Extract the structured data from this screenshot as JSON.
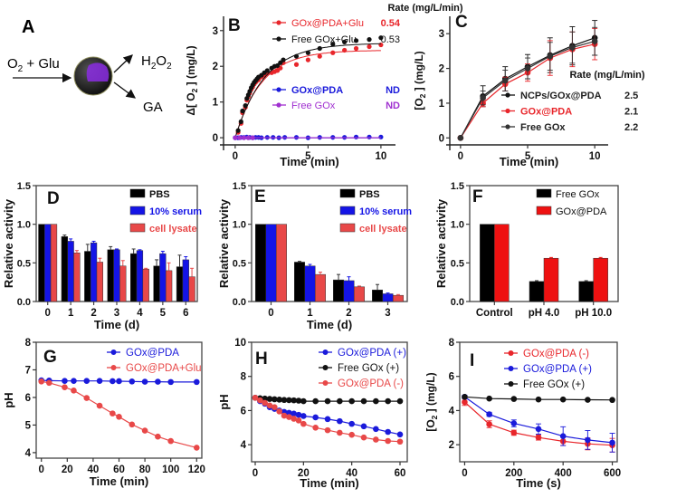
{
  "figure": {
    "panel_a": {
      "letter": "A",
      "input_label": "O2 + Glu",
      "output_top": "H2O2",
      "output_bottom": "GA",
      "particle_color": "#2a2a2a",
      "core_color": "#8a2be2"
    }
  },
  "chart_data": [
    {
      "id": "B",
      "type": "scatter",
      "letter": "B",
      "title": "",
      "xlabel": "Time (min)",
      "ylabel": "Δ[ O2 ] (mg/L)",
      "xlim": [
        -0.8,
        11
      ],
      "ylim": [
        -0.2,
        3.4
      ],
      "xticks": [
        0,
        5,
        10
      ],
      "yticks": [
        0,
        1,
        2,
        3
      ],
      "legend_header": "Rate (mg/L/min)",
      "legend_position": "top-right",
      "series": [
        {
          "name": "GOx@PDA+Glu",
          "rate": "0.54",
          "color": "#e8262b",
          "fit": {
            "a": 2.45,
            "k": 0.55
          },
          "x": [
            0.2,
            0.4,
            0.5,
            0.7,
            0.8,
            0.9,
            1.0,
            1.1,
            1.2,
            1.3,
            1.4,
            1.5,
            1.6,
            1.8,
            2.0,
            2.2,
            2.5,
            2.7,
            2.9,
            3.1,
            3.3,
            4.2,
            5.0,
            5.8,
            6.7,
            7.5,
            8.3,
            9.2,
            10.0
          ],
          "y": [
            0.15,
            0.4,
            0.7,
            0.85,
            1.05,
            1.15,
            1.25,
            1.35,
            1.42,
            1.5,
            1.55,
            1.6,
            1.62,
            1.7,
            1.75,
            1.8,
            1.82,
            1.85,
            1.88,
            1.95,
            2.1,
            2.05,
            2.18,
            2.28,
            2.38,
            2.45,
            2.5,
            2.55,
            2.6
          ]
        },
        {
          "name": "Free GOx+Glu",
          "rate": "0.53",
          "color": "#111111",
          "fit": {
            "a": 2.65,
            "k": 0.5
          },
          "x": [
            0.2,
            0.4,
            0.5,
            0.7,
            0.8,
            0.9,
            1.0,
            1.1,
            1.2,
            1.3,
            1.4,
            1.5,
            1.6,
            1.8,
            2.0,
            2.2,
            2.5,
            2.7,
            2.9,
            3.1,
            3.3,
            4.2,
            5.0,
            5.8,
            6.7,
            7.5,
            8.3,
            9.2,
            10.0
          ],
          "y": [
            0.2,
            0.45,
            0.75,
            0.9,
            1.1,
            1.2,
            1.3,
            1.4,
            1.48,
            1.55,
            1.6,
            1.65,
            1.7,
            1.75,
            1.82,
            1.88,
            1.95,
            2.0,
            2.02,
            2.1,
            2.18,
            2.28,
            2.38,
            2.5,
            2.62,
            2.68,
            2.72,
            2.75,
            2.8
          ]
        },
        {
          "name": "GOx@PDA",
          "rate": "ND",
          "color": "#1a1adb",
          "x": [
            0,
            0.2,
            0.4,
            0.6,
            0.8,
            1.0,
            1.2,
            1.4,
            1.6,
            1.8,
            2.2,
            2.6,
            3.0,
            3.4,
            4.2,
            5.0,
            5.8,
            6.7,
            7.5,
            8.3,
            9.2,
            10.0
          ],
          "y": [
            0,
            0,
            0.01,
            0.01,
            0.02,
            0.01,
            0,
            0.01,
            0.01,
            0,
            0.01,
            0.01,
            0,
            0.01,
            0.01,
            0,
            0.01,
            0.01,
            0.01,
            0.02,
            0.02,
            0.02
          ]
        },
        {
          "name": "Free GOx",
          "rate": "ND",
          "color": "#a030d0",
          "x": [
            0,
            0.3,
            0.6,
            0.9,
            1.2
          ],
          "y": [
            0,
            0,
            0,
            0,
            0
          ]
        }
      ]
    },
    {
      "id": "C",
      "type": "line",
      "letter": "C",
      "xlabel": "Time (min)",
      "ylabel": "[O2 ] (mg/L)",
      "xlim": [
        -0.8,
        11
      ],
      "ylim": [
        -0.2,
        3.5
      ],
      "xticks": [
        0,
        5,
        10
      ],
      "yticks": [
        0,
        1,
        2,
        3
      ],
      "legend_header": "Rate (mg/L/min)",
      "legend_position": "bottom-right",
      "x": [
        0,
        1.67,
        3.33,
        5.0,
        6.67,
        8.33,
        10.0
      ],
      "series": [
        {
          "name": "NCPs/GOx@PDA",
          "rate": "2.5",
          "color": "#111111",
          "y": [
            0,
            1.2,
            1.7,
            2.05,
            2.38,
            2.65,
            2.88
          ],
          "err": [
            0,
            0.3,
            0.35,
            0.35,
            0.5,
            0.55,
            0.5
          ]
        },
        {
          "name": "GOx@PDA",
          "rate": "2.1",
          "color": "#e8262b",
          "y": [
            0,
            1.0,
            1.55,
            1.88,
            2.3,
            2.55,
            2.7
          ],
          "err": [
            0,
            0.1,
            0.2,
            0.25,
            0.5,
            0.5,
            0.45
          ]
        },
        {
          "name": "Free GOx",
          "rate": "2.2",
          "color": "#333333",
          "y": [
            0,
            1.15,
            1.65,
            2.0,
            2.35,
            2.6,
            2.78
          ],
          "err": [
            0,
            0.2,
            0.3,
            0.3,
            0.4,
            0.45,
            0.4
          ]
        }
      ]
    },
    {
      "id": "D",
      "type": "bar",
      "letter": "D",
      "xlabel": "Time (d)",
      "ylabel": "Relative activity",
      "ylim": [
        0,
        1.5
      ],
      "yticks": [
        "0.0",
        "0.5",
        "1.0",
        "1.5"
      ],
      "categories": [
        "0",
        "1",
        "2",
        "3",
        "4",
        "5",
        "6"
      ],
      "legend_position": "top-right",
      "series": [
        {
          "name": "PBS",
          "color": "#000000",
          "label_color": "#111111",
          "values": [
            1.0,
            0.84,
            0.65,
            0.67,
            0.62,
            0.46,
            0.45
          ],
          "err": [
            0,
            0.02,
            0.09,
            0.04,
            0.06,
            0.08,
            0.15
          ]
        },
        {
          "name": "10% serum",
          "color": "#1414e6",
          "label_color": "#1414e6",
          "values": [
            1.0,
            0.78,
            0.76,
            0.67,
            0.66,
            0.62,
            0.54
          ],
          "err": [
            0,
            0.03,
            0.02,
            0.01,
            0.01,
            0.03,
            0.04
          ]
        },
        {
          "name": "cell lysate",
          "color": "#e84848",
          "label_color": "#e84848",
          "values": [
            1.0,
            0.63,
            0.51,
            0.46,
            0.42,
            0.4,
            0.32
          ],
          "err": [
            0,
            0.03,
            0.05,
            0.07,
            0.01,
            0.1,
            0.11
          ]
        }
      ]
    },
    {
      "id": "E",
      "type": "bar",
      "letter": "E",
      "xlabel": "Time (d)",
      "ylabel": "Relative activity",
      "ylim": [
        0,
        1.5
      ],
      "yticks": [
        "0.0",
        "0.5",
        "1.0",
        "1.5"
      ],
      "categories": [
        "0",
        "1",
        "2",
        "3"
      ],
      "legend_position": "top-right",
      "series": [
        {
          "name": "PBS",
          "color": "#000000",
          "label_color": "#111111",
          "values": [
            1.0,
            0.51,
            0.28,
            0.15
          ],
          "err": [
            0,
            0.01,
            0.07,
            0.07
          ]
        },
        {
          "name": "10% serum",
          "color": "#1414e6",
          "label_color": "#1414e6",
          "values": [
            1.0,
            0.46,
            0.27,
            0.1
          ],
          "err": [
            0,
            0.02,
            0.05,
            0.01
          ]
        },
        {
          "name": "cell lysate",
          "color": "#e84848",
          "label_color": "#e84848",
          "values": [
            1.0,
            0.35,
            0.19,
            0.08
          ],
          "err": [
            0,
            0.03,
            0.01,
            0.01
          ]
        }
      ]
    },
    {
      "id": "F",
      "type": "bar",
      "letter": "F",
      "xlabel": "",
      "ylabel": "Relative activity",
      "ylim": [
        0,
        1.5
      ],
      "yticks": [
        "0.0",
        "0.5",
        "1.0",
        "1.5"
      ],
      "categories": [
        "Control",
        "pH 4.0",
        "pH 10.0"
      ],
      "legend_position": "top-right",
      "series": [
        {
          "name": "Free GOx",
          "color": "#000000",
          "label_color": "#111111",
          "values": [
            1.0,
            0.26,
            0.26
          ],
          "err": [
            0,
            0.01,
            0.01
          ]
        },
        {
          "name": "GOx@PDA",
          "color": "#ee1111",
          "label_color": "#111111",
          "values": [
            1.0,
            0.56,
            0.56
          ],
          "err": [
            0,
            0.01,
            0.01
          ]
        }
      ]
    },
    {
      "id": "G",
      "type": "line",
      "letter": "G",
      "xlabel": "Time (min)",
      "ylabel": "pH",
      "xlim": [
        -4,
        124
      ],
      "ylim": [
        3.8,
        8
      ],
      "xticks": [
        0,
        20,
        40,
        60,
        80,
        100,
        120
      ],
      "yticks": [
        4,
        5,
        6,
        7,
        8
      ],
      "legend_position": "top-right",
      "series": [
        {
          "name": "GOx@PDA",
          "color": "#1a1adb",
          "x": [
            0,
            6,
            18,
            25,
            35,
            45,
            55,
            60,
            70,
            80,
            90,
            100,
            120
          ],
          "y": [
            6.62,
            6.61,
            6.6,
            6.6,
            6.6,
            6.6,
            6.59,
            6.59,
            6.58,
            6.57,
            6.57,
            6.56,
            6.56
          ]
        },
        {
          "name": "GOx@PDA+Glu",
          "color": "#e84848",
          "x": [
            0,
            6,
            18,
            25,
            35,
            45,
            55,
            60,
            70,
            80,
            90,
            100,
            120
          ],
          "y": [
            6.58,
            6.53,
            6.37,
            6.25,
            5.98,
            5.7,
            5.42,
            5.3,
            5.02,
            4.8,
            4.58,
            4.42,
            4.18
          ]
        }
      ]
    },
    {
      "id": "H",
      "type": "line",
      "letter": "H",
      "xlabel": "Time (min)",
      "ylabel": "pH",
      "xlim": [
        -1.5,
        63
      ],
      "ylim": [
        3,
        10
      ],
      "xticks": [
        0,
        20,
        40,
        60
      ],
      "yticks": [
        4,
        6,
        8,
        10
      ],
      "legend_position": "top-right",
      "series": [
        {
          "name": "GOx@PDA (+)",
          "color": "#1a1adb",
          "x": [
            0,
            2,
            4,
            6,
            8,
            10,
            12,
            14,
            16,
            18,
            20,
            25,
            30,
            35,
            40,
            45,
            50,
            55,
            60
          ],
          "y": [
            6.75,
            6.55,
            6.4,
            6.2,
            6.1,
            6.0,
            5.92,
            5.87,
            5.82,
            5.75,
            5.68,
            5.6,
            5.5,
            5.38,
            5.22,
            5.08,
            4.92,
            4.75,
            4.6
          ]
        },
        {
          "name": "Free GOx (+)",
          "color": "#111111",
          "x": [
            0,
            2,
            4,
            6,
            8,
            10,
            12,
            14,
            16,
            18,
            20,
            25,
            30,
            35,
            40,
            45,
            50,
            55,
            60
          ],
          "y": [
            6.75,
            6.72,
            6.7,
            6.68,
            6.66,
            6.64,
            6.62,
            6.61,
            6.6,
            6.58,
            6.55,
            6.55,
            6.55,
            6.55,
            6.55,
            6.55,
            6.55,
            6.55,
            6.55
          ]
        },
        {
          "name": "GOx@PDA (-)",
          "color": "#e84848",
          "x": [
            0,
            2,
            4,
            6,
            8,
            10,
            12,
            14,
            16,
            18,
            20,
            25,
            30,
            35,
            40,
            45,
            50,
            55,
            60
          ],
          "y": [
            6.75,
            6.6,
            6.45,
            6.3,
            6.2,
            5.95,
            5.7,
            5.62,
            5.52,
            5.42,
            5.22,
            5.0,
            4.85,
            4.7,
            4.58,
            4.42,
            4.3,
            4.22,
            4.18
          ]
        }
      ]
    },
    {
      "id": "I",
      "type": "line",
      "letter": "I",
      "xlabel": "Time (s)",
      "ylabel": "[O2 ] (mg/L)",
      "xlim": [
        -20,
        620
      ],
      "ylim": [
        1,
        8
      ],
      "xticks": [
        0,
        200,
        400,
        600
      ],
      "yticks": [
        2,
        4,
        6,
        8
      ],
      "legend_position": "top-right",
      "x": [
        0,
        100,
        200,
        300,
        400,
        500,
        600
      ],
      "series": [
        {
          "name": "GOx@PDA (-)",
          "color": "#e8262b",
          "y": [
            4.5,
            3.2,
            2.7,
            2.42,
            2.2,
            2.05,
            1.97
          ],
          "err": [
            0.2,
            0.2,
            0.15,
            0.15,
            0.25,
            0.35,
            0.4
          ]
        },
        {
          "name": "GOx@PDA (+)",
          "color": "#1a1adb",
          "y": [
            4.8,
            3.78,
            3.25,
            2.92,
            2.5,
            2.28,
            2.12
          ],
          "err": [
            0.1,
            0.12,
            0.2,
            0.3,
            0.55,
            0.55,
            0.55
          ]
        },
        {
          "name": "Free GOx (+)",
          "color": "#111111",
          "y": [
            4.8,
            4.7,
            4.68,
            4.65,
            4.65,
            4.63,
            4.62
          ],
          "err": [
            0,
            0,
            0,
            0,
            0,
            0,
            0
          ]
        }
      ]
    }
  ]
}
